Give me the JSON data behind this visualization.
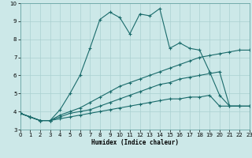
{
  "title": "",
  "xlabel": "Humidex (Indice chaleur)",
  "xlim": [
    0,
    23
  ],
  "ylim": [
    3,
    10
  ],
  "yticks": [
    3,
    4,
    5,
    6,
    7,
    8,
    9,
    10
  ],
  "xticks": [
    0,
    1,
    2,
    3,
    4,
    5,
    6,
    7,
    8,
    9,
    10,
    11,
    12,
    13,
    14,
    15,
    16,
    17,
    18,
    19,
    20,
    21,
    22,
    23
  ],
  "background_color": "#cce8e8",
  "line_color": "#1a6b6b",
  "grid_color": "#aad0d0",
  "lines": [
    {
      "x": [
        0,
        1,
        2,
        3,
        4,
        5,
        6,
        7,
        8,
        9,
        10,
        11,
        12,
        13,
        14,
        15,
        16,
        17,
        18,
        19,
        20,
        21,
        22
      ],
      "y": [
        3.9,
        3.7,
        3.5,
        3.5,
        4.1,
        5.0,
        6.0,
        7.5,
        9.1,
        9.5,
        9.2,
        8.3,
        9.4,
        9.3,
        9.7,
        7.5,
        7.8,
        7.5,
        7.4,
        6.2,
        4.9,
        4.3,
        4.3
      ]
    },
    {
      "x": [
        0,
        1,
        2,
        3,
        4,
        5,
        6,
        7,
        8,
        9,
        10,
        11,
        12,
        13,
        14,
        15,
        16,
        17,
        18,
        19,
        20,
        21,
        22,
        23
      ],
      "y": [
        3.9,
        3.7,
        3.5,
        3.5,
        3.8,
        4.0,
        4.2,
        4.5,
        4.8,
        5.1,
        5.4,
        5.6,
        5.8,
        6.0,
        6.2,
        6.4,
        6.6,
        6.8,
        7.0,
        7.1,
        7.2,
        7.3,
        7.4,
        7.4
      ]
    },
    {
      "x": [
        0,
        1,
        2,
        3,
        4,
        5,
        6,
        7,
        8,
        9,
        10,
        11,
        12,
        13,
        14,
        15,
        16,
        17,
        18,
        19,
        20,
        21,
        22,
        23
      ],
      "y": [
        3.9,
        3.7,
        3.5,
        3.5,
        3.7,
        3.9,
        4.0,
        4.1,
        4.3,
        4.5,
        4.7,
        4.9,
        5.1,
        5.3,
        5.5,
        5.6,
        5.8,
        5.9,
        6.0,
        6.1,
        6.2,
        4.3,
        4.3,
        4.3
      ]
    },
    {
      "x": [
        0,
        1,
        2,
        3,
        4,
        5,
        6,
        7,
        8,
        9,
        10,
        11,
        12,
        13,
        14,
        15,
        16,
        17,
        18,
        19,
        20,
        21,
        22,
        23
      ],
      "y": [
        3.9,
        3.7,
        3.5,
        3.5,
        3.6,
        3.7,
        3.8,
        3.9,
        4.0,
        4.1,
        4.2,
        4.3,
        4.4,
        4.5,
        4.6,
        4.7,
        4.7,
        4.8,
        4.8,
        4.9,
        4.3,
        4.3,
        4.3,
        4.3
      ]
    }
  ]
}
